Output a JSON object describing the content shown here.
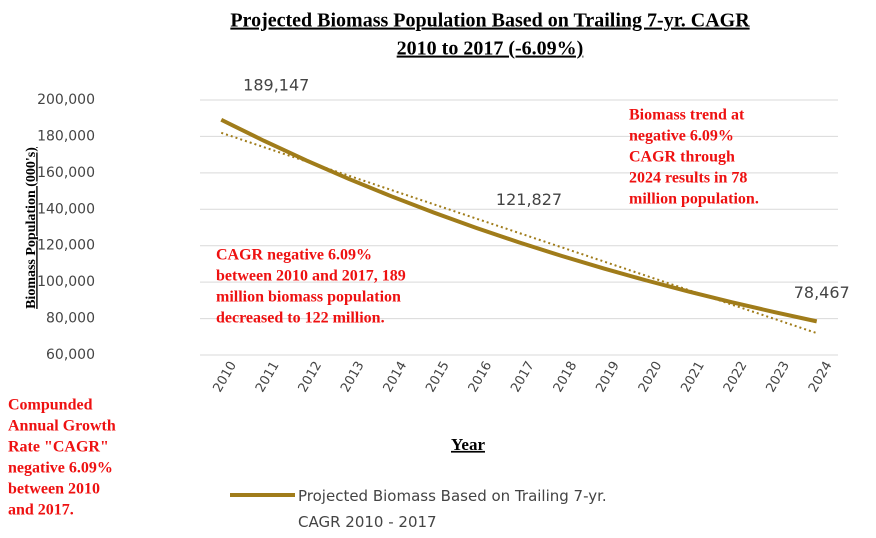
{
  "chart_data": {
    "type": "line",
    "title": [
      "Projected Biomass Population  Based on Trailing 7-yr. CAGR",
      "2010 to 2017  (-6.09%)"
    ],
    "x_label": "Year",
    "y_label": "Biomass Population (000's)",
    "categories": [
      "2010",
      "2011",
      "2012",
      "2013",
      "2014",
      "2015",
      "2016",
      "2017",
      "2018",
      "2019",
      "2020",
      "2021",
      "2022",
      "2023",
      "2024"
    ],
    "series": [
      {
        "name": "Projected Biomass Based on Trailing 7-yr. CAGR 2010 - 2017",
        "color": "#a07c1a",
        "values": [
          189147,
          177628,
          166811,
          156652,
          147112,
          138153,
          129740,
          121827,
          114407,
          107440,
          100897,
          94753,
          88982,
          83563,
          78467
        ],
        "value_labels": [
          "189,147",
          null,
          null,
          null,
          null,
          null,
          null,
          "121,827",
          null,
          null,
          null,
          null,
          null,
          null,
          "78,467"
        ]
      }
    ],
    "trendline": {
      "x": [
        "2010",
        "2024"
      ],
      "values": [
        182000,
        72000
      ],
      "color": "#a07c1a"
    },
    "ylim": [
      60000,
      200000
    ],
    "yticks": [
      {
        "value": 60000,
        "label": "60,000"
      },
      {
        "value": 80000,
        "label": "80,000"
      },
      {
        "value": 100000,
        "label": "100,000"
      },
      {
        "value": 120000,
        "label": "120,000"
      },
      {
        "value": 140000,
        "label": "140,000"
      },
      {
        "value": 160000,
        "label": "160,000"
      },
      {
        "value": 180000,
        "label": "180,000"
      },
      {
        "value": 200000,
        "label": "200,000"
      }
    ],
    "grid": true,
    "annotations": [
      {
        "lines": [
          "Biomass trend at",
          "negative 6.09%",
          "CAGR through",
          "2024 results in 78",
          "million population."
        ],
        "color": "#ee1111"
      },
      {
        "lines": [
          "CAGR negative 6.09%",
          "between 2010 and 2017, 189",
          "million biomass population",
          "decreased  to 122 million."
        ],
        "color": "#ee1111"
      },
      {
        "lines": [
          "Compunded",
          "Annual Growth",
          "Rate \"CAGR\"",
          "negative 6.09%",
          "between 2010",
          "and 2017."
        ],
        "color": "#ee1111"
      }
    ]
  }
}
